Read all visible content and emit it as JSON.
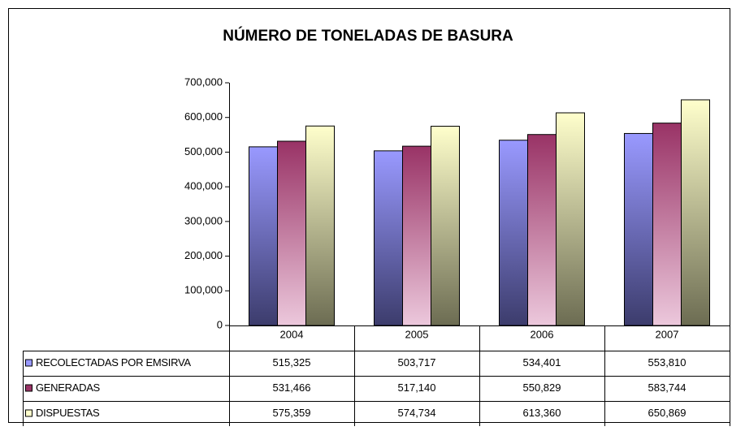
{
  "chart_data": {
    "type": "bar",
    "title": "NÚMERO DE TONELADAS DE BASURA",
    "categories": [
      "2004",
      "2005",
      "2006",
      "2007"
    ],
    "series": [
      {
        "name": "RECOLECTADAS POR EMSIRVA",
        "color": "#9999ff",
        "gradient_end": "#3c3c6c",
        "values": [
          515325,
          503717,
          534401,
          553810
        ],
        "value_labels": [
          "515,325",
          "503,717",
          "534,401",
          "553,810"
        ]
      },
      {
        "name": "GENERADAS",
        "color": "#993366",
        "gradient_end": "#ecc8dc",
        "values": [
          531466,
          517140,
          550829,
          583744
        ],
        "value_labels": [
          "531,466",
          "517,140",
          "550,829",
          "583,744"
        ]
      },
      {
        "name": "DISPUESTAS",
        "color": "#ffffcc",
        "gradient_end": "#6c6c52",
        "values": [
          575359,
          574734,
          613360,
          650869
        ],
        "value_labels": [
          "575,359",
          "574,734",
          "613,360",
          "650,869"
        ]
      }
    ],
    "ylim": [
      0,
      700000
    ],
    "yticks": [
      0,
      {
        "value": 100000,
        "label": "100,000"
      },
      {
        "value": 200000,
        "label": "200,000"
      },
      {
        "value": 300000,
        "label": "300,000"
      },
      {
        "value": 400000,
        "label": "400,000"
      },
      {
        "value": 500000,
        "label": "500,000"
      },
      {
        "value": 600000,
        "label": "600,000"
      },
      {
        "value": 700000,
        "label": "700,000"
      }
    ],
    "grid": false
  }
}
